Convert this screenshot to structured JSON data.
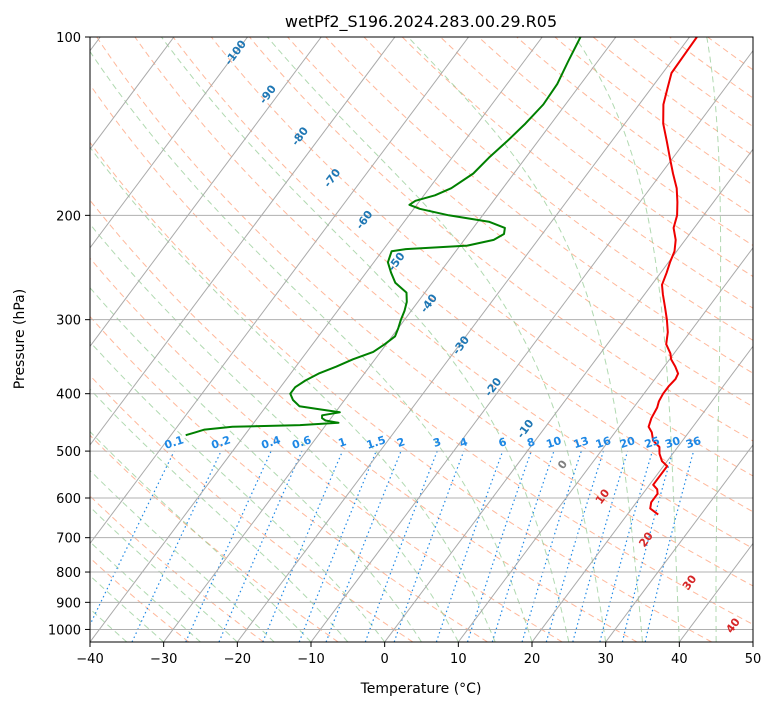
{
  "chart_data": {
    "type": "line",
    "subtype": "skew-t log-p diagram",
    "title": "wetPf2_S196.2024.283.00.29.R05",
    "xlabel": "Temperature (°C)",
    "ylabel": "Pressure (hPa)",
    "xlim": [
      -40,
      50
    ],
    "ylim": [
      1050,
      100
    ],
    "yscale": "log",
    "grid": true,
    "x_ticks": [
      "−40",
      "−30",
      "−20",
      "−10",
      "0",
      "10",
      "20",
      "30",
      "40",
      "50"
    ],
    "y_ticks": [
      {
        "p": 100,
        "label": "100"
      },
      {
        "p": 200,
        "label": "200"
      },
      {
        "p": 300,
        "label": "300"
      },
      {
        "p": 400,
        "label": "400"
      },
      {
        "p": 500,
        "label": "500"
      },
      {
        "p": 600,
        "label": "600"
      },
      {
        "p": 700,
        "label": "700"
      },
      {
        "p": 800,
        "label": "800"
      },
      {
        "p": 900,
        "label": "900"
      },
      {
        "p": 1000,
        "label": "1000"
      }
    ],
    "isotherm_labels": [
      {
        "t": -100,
        "label": "-100"
      },
      {
        "t": -90,
        "label": "-90"
      },
      {
        "t": -80,
        "label": "-80"
      },
      {
        "t": -70,
        "label": "-70"
      },
      {
        "t": -60,
        "label": "-60"
      },
      {
        "t": -50,
        "label": "-50"
      },
      {
        "t": -40,
        "label": "-40"
      },
      {
        "t": -30,
        "label": "-30"
      },
      {
        "t": -20,
        "label": "-20"
      },
      {
        "t": -10,
        "label": "-10"
      },
      {
        "t": 0,
        "label": "0"
      },
      {
        "t": 10,
        "label": "10"
      },
      {
        "t": 20,
        "label": "20"
      },
      {
        "t": 30,
        "label": "30"
      },
      {
        "t": 40,
        "label": "40"
      }
    ],
    "mixing_ratio_labels": [
      "0.1",
      "0.2",
      "0.4",
      "0.6",
      "1",
      "1.5",
      "2",
      "3",
      "4",
      "6",
      "8",
      "10",
      "13",
      "16",
      "20",
      "25",
      "30",
      "36"
    ],
    "mixing_ratio_values": [
      0.1,
      0.2,
      0.4,
      0.6,
      1,
      1.5,
      2,
      3,
      4,
      6,
      8,
      10,
      13,
      16,
      20,
      25,
      30,
      36
    ],
    "colors": {
      "temperature": "#ee0000",
      "dewpoint": "#008000",
      "isotherm_label": "#1f77b4",
      "isotherm_label_warm": "#d62728",
      "isotherm_label_zero": "#7f7f7f",
      "mixing_ratio": "#1e88e5",
      "dry_adiabat": "#ffa07a",
      "moist_adiabat": "#8fc98f",
      "skewed_isotherm": "#aaaaaa"
    },
    "series": [
      {
        "name": "temperature",
        "points": [
          [
            24.2,
            640
          ],
          [
            22.5,
            625
          ],
          [
            22.0,
            610
          ],
          [
            22.0,
            590
          ],
          [
            21.5,
            580
          ],
          [
            20.5,
            570
          ],
          [
            20.5,
            545
          ],
          [
            20.5,
            530
          ],
          [
            19.3,
            520
          ],
          [
            18.2,
            505
          ],
          [
            17.5,
            492
          ],
          [
            16.0,
            480
          ],
          [
            15.0,
            465
          ],
          [
            14.0,
            455
          ],
          [
            13.5,
            440
          ],
          [
            13.2,
            422
          ],
          [
            12.8,
            412
          ],
          [
            12.6,
            400
          ],
          [
            12.6,
            388
          ],
          [
            12.8,
            378
          ],
          [
            12.6,
            370
          ],
          [
            11.5,
            360
          ],
          [
            10.2,
            350
          ],
          [
            9.5,
            342
          ],
          [
            8.0,
            330
          ],
          [
            7.0,
            315
          ],
          [
            5.6,
            300
          ],
          [
            4.0,
            285
          ],
          [
            2.5,
            272
          ],
          [
            1.4,
            262
          ],
          [
            0.8,
            250
          ],
          [
            0.2,
            240
          ],
          [
            -0.3,
            230
          ],
          [
            -1.3,
            220
          ],
          [
            -2.8,
            210
          ],
          [
            -3.6,
            200
          ],
          [
            -4.9,
            190
          ],
          [
            -6.4,
            180
          ],
          [
            -8.4,
            170
          ],
          [
            -10.4,
            160
          ],
          [
            -12.5,
            150
          ],
          [
            -14.8,
            140
          ],
          [
            -16.7,
            130
          ],
          [
            -17.8,
            122
          ],
          [
            -18.8,
            115
          ],
          [
            -18.9,
            108
          ],
          [
            -19.0,
            100
          ]
        ]
      },
      {
        "name": "dewpoint",
        "points": [
          [
            -48.0,
            470
          ],
          [
            -47.0,
            465
          ],
          [
            -46.0,
            460
          ],
          [
            -42.5,
            455
          ],
          [
            -33.5,
            452
          ],
          [
            -28.5,
            448
          ],
          [
            -30.5,
            444
          ],
          [
            -31.2,
            440
          ],
          [
            -31.5,
            435
          ],
          [
            -29.4,
            430
          ],
          [
            -32.5,
            425
          ],
          [
            -35.5,
            420
          ],
          [
            -37.0,
            410
          ],
          [
            -38.0,
            400
          ],
          [
            -38.0,
            390
          ],
          [
            -37.3,
            380
          ],
          [
            -36.2,
            370
          ],
          [
            -34.5,
            360
          ],
          [
            -33.0,
            350
          ],
          [
            -31.0,
            340
          ],
          [
            -30.2,
            330
          ],
          [
            -29.6,
            320
          ],
          [
            -30.0,
            310
          ],
          [
            -30.5,
            300
          ],
          [
            -30.9,
            290
          ],
          [
            -31.5,
            280
          ],
          [
            -32.5,
            270
          ],
          [
            -35.0,
            260
          ],
          [
            -36.6,
            250
          ],
          [
            -38.1,
            240
          ],
          [
            -38.7,
            230
          ],
          [
            -37.0,
            228
          ],
          [
            -29.0,
            225
          ],
          [
            -26.0,
            220
          ],
          [
            -25.2,
            215
          ],
          [
            -25.7,
            210
          ],
          [
            -28.5,
            205
          ],
          [
            -34.6,
            200
          ],
          [
            -39.2,
            195
          ],
          [
            -41.0,
            192
          ],
          [
            -40.6,
            189
          ],
          [
            -38.5,
            185
          ],
          [
            -37.0,
            180
          ],
          [
            -35.5,
            170
          ],
          [
            -35.0,
            160
          ],
          [
            -34.2,
            150
          ],
          [
            -33.5,
            140
          ],
          [
            -33.0,
            130
          ],
          [
            -33.2,
            120
          ],
          [
            -34.0,
            110
          ],
          [
            -34.8,
            100
          ]
        ]
      }
    ]
  }
}
